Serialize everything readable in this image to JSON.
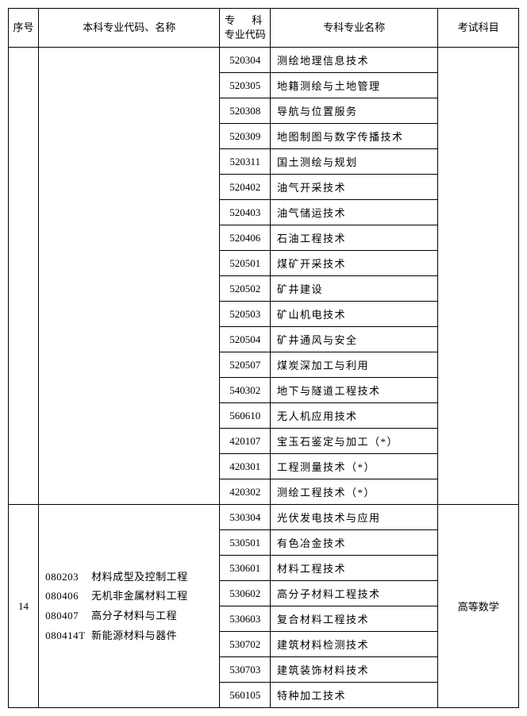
{
  "headers": {
    "seq": "序号",
    "undergrad": "本科专业代码、名称",
    "spec_code_line1": "专　科",
    "spec_code_line2": "专业代码",
    "spec_name": "专科专业名称",
    "exam": "考试科目"
  },
  "group1": {
    "seq": "",
    "undergrad_lines": [],
    "exam": "",
    "rows": [
      {
        "code": "520304",
        "name": "测绘地理信息技术"
      },
      {
        "code": "520305",
        "name": "地籍测绘与土地管理"
      },
      {
        "code": "520308",
        "name": "导航与位置服务"
      },
      {
        "code": "520309",
        "name": "地图制图与数字传播技术"
      },
      {
        "code": "520311",
        "name": "国土测绘与规划"
      },
      {
        "code": "520402",
        "name": "油气开采技术"
      },
      {
        "code": "520403",
        "name": "油气储运技术"
      },
      {
        "code": "520406",
        "name": "石油工程技术"
      },
      {
        "code": "520501",
        "name": "煤矿开采技术"
      },
      {
        "code": "520502",
        "name": "矿井建设"
      },
      {
        "code": "520503",
        "name": "矿山机电技术"
      },
      {
        "code": "520504",
        "name": "矿井通风与安全"
      },
      {
        "code": "520507",
        "name": "煤炭深加工与利用"
      },
      {
        "code": "540302",
        "name": "地下与隧道工程技术"
      },
      {
        "code": "560610",
        "name": "无人机应用技术"
      },
      {
        "code": "420107",
        "name": "宝玉石鉴定与加工（*）"
      },
      {
        "code": "420301",
        "name": "工程测量技术（*）"
      },
      {
        "code": "420302",
        "name": "测绘工程技术（*）"
      }
    ]
  },
  "group2": {
    "seq": "14",
    "undergrad_lines": [
      {
        "code": "080203",
        "name": "材料成型及控制工程"
      },
      {
        "code": "080406",
        "name": "无机非金属材料工程"
      },
      {
        "code": "080407",
        "name": "高分子材料与工程"
      },
      {
        "code": "080414T",
        "name": "新能源材料与器件"
      }
    ],
    "exam": "高等数学",
    "rows": [
      {
        "code": "530304",
        "name": "光伏发电技术与应用"
      },
      {
        "code": "530501",
        "name": "有色冶金技术"
      },
      {
        "code": "530601",
        "name": "材料工程技术"
      },
      {
        "code": "530602",
        "name": "高分子材料工程技术"
      },
      {
        "code": "530603",
        "name": "复合材料工程技术"
      },
      {
        "code": "530702",
        "name": "建筑材料检测技术"
      },
      {
        "code": "530703",
        "name": "建筑装饰材料技术"
      },
      {
        "code": "560105",
        "name": "特种加工技术"
      }
    ]
  }
}
